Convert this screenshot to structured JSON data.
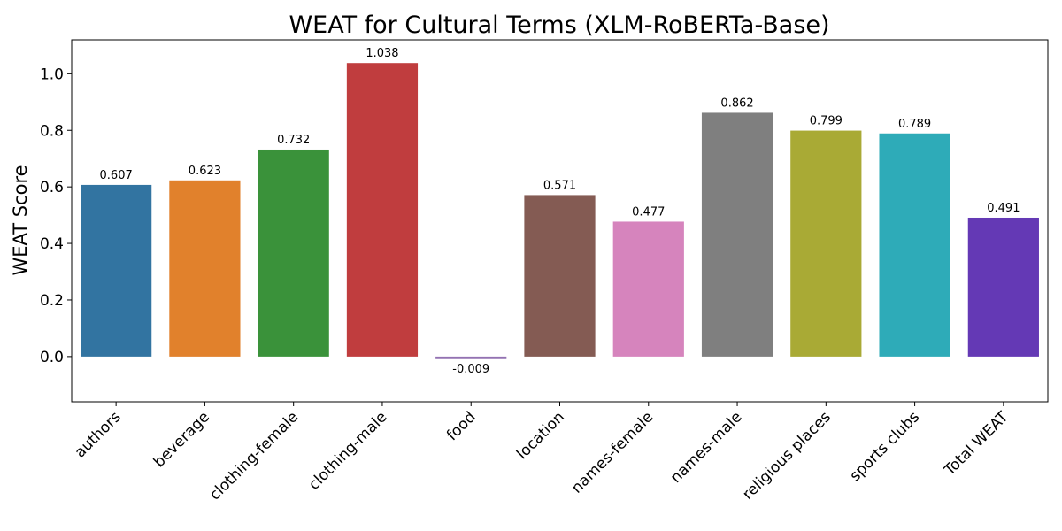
{
  "chart_data": {
    "type": "bar",
    "title": "WEAT for Cultural Terms (XLM-RoBERTa-Base)",
    "xlabel": "",
    "ylabel": "WEAT Score",
    "categories": [
      "authors",
      "beverage",
      "clothing-female",
      "clothing-male",
      "food",
      "location",
      "names-female",
      "names-male",
      "religious places",
      "sports clubs",
      "Total WEAT"
    ],
    "values": [
      0.607,
      0.623,
      0.732,
      1.038,
      -0.009,
      0.571,
      0.477,
      0.862,
      0.799,
      0.789,
      0.491
    ],
    "value_labels": [
      "0.607",
      "0.623",
      "0.732",
      "1.038",
      "-0.009",
      "0.571",
      "0.477",
      "0.862",
      "0.799",
      "0.789",
      "0.491"
    ],
    "colors": [
      "#3274a1",
      "#e1812c",
      "#3a923a",
      "#c03d3e",
      "#9372b2",
      "#845b53",
      "#d684bd",
      "#7f7f7f",
      "#a9aa35",
      "#2eabb8",
      "#6439b5"
    ],
    "ylim": [
      -0.16,
      1.12
    ],
    "yticks": [
      0.0,
      0.2,
      0.4,
      0.6,
      0.8,
      1.0
    ],
    "ytick_labels": [
      "0.0",
      "0.2",
      "0.4",
      "0.6",
      "0.8",
      "1.0"
    ],
    "grid": false,
    "legend": "none"
  }
}
